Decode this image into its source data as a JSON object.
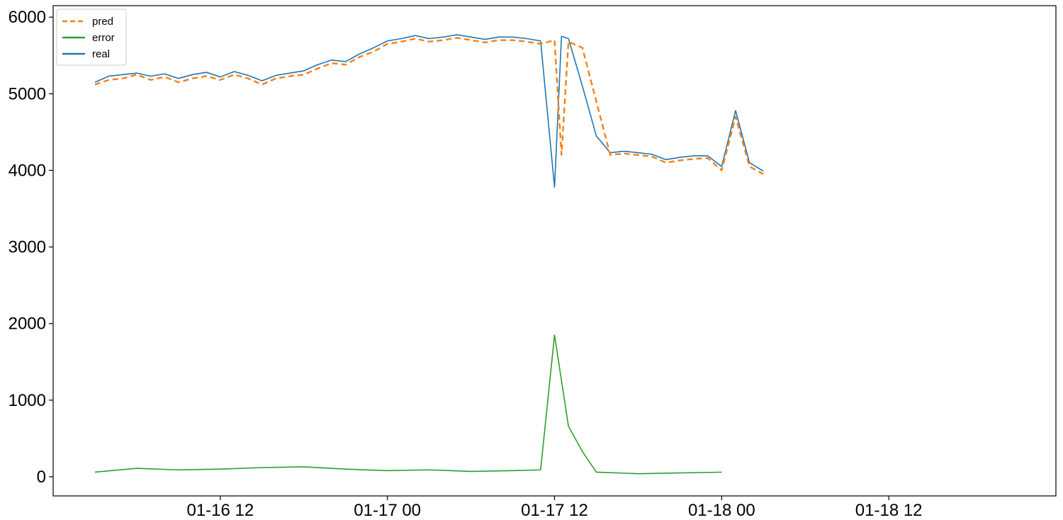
{
  "chart_data": {
    "type": "line",
    "title": "",
    "xlabel": "",
    "ylabel": "",
    "x_unit": "time (MM-DD HH)",
    "xlim": [
      "01-16 00:00",
      "01-19 00:00"
    ],
    "ylim": [
      -250,
      6150
    ],
    "grid": false,
    "legend_placement": "top-left",
    "x_ticks": [
      "01-16 12",
      "01-17 00",
      "01-17 12",
      "01-18 00",
      "01-18 12"
    ],
    "y_ticks": [
      0,
      1000,
      2000,
      3000,
      4000,
      5000,
      6000
    ],
    "series": [
      {
        "name": "pred",
        "color": "#ff7f0e",
        "style": "dashed",
        "points": [
          [
            "01-16 03:00",
            5120
          ],
          [
            "01-16 04:00",
            5180
          ],
          [
            "01-16 05:00",
            5200
          ],
          [
            "01-16 06:00",
            5250
          ],
          [
            "01-16 07:00",
            5180
          ],
          [
            "01-16 08:00",
            5220
          ],
          [
            "01-16 09:00",
            5150
          ],
          [
            "01-16 10:00",
            5200
          ],
          [
            "01-16 11:00",
            5230
          ],
          [
            "01-16 12:00",
            5180
          ],
          [
            "01-16 13:00",
            5250
          ],
          [
            "01-16 14:00",
            5200
          ],
          [
            "01-16 15:00",
            5120
          ],
          [
            "01-16 16:00",
            5200
          ],
          [
            "01-16 17:00",
            5230
          ],
          [
            "01-16 18:00",
            5250
          ],
          [
            "01-16 19:00",
            5330
          ],
          [
            "01-16 20:00",
            5400
          ],
          [
            "01-16 21:00",
            5380
          ],
          [
            "01-16 22:00",
            5480
          ],
          [
            "01-16 23:00",
            5550
          ],
          [
            "01-17 00:00",
            5650
          ],
          [
            "01-17 01:00",
            5680
          ],
          [
            "01-17 02:00",
            5720
          ],
          [
            "01-17 03:00",
            5680
          ],
          [
            "01-17 04:00",
            5700
          ],
          [
            "01-17 05:00",
            5730
          ],
          [
            "01-17 06:00",
            5700
          ],
          [
            "01-17 07:00",
            5670
          ],
          [
            "01-17 08:00",
            5700
          ],
          [
            "01-17 09:00",
            5700
          ],
          [
            "01-17 10:00",
            5680
          ],
          [
            "01-17 11:00",
            5650
          ],
          [
            "01-17 12:00",
            5700
          ],
          [
            "01-17 12:30",
            4200
          ],
          [
            "01-17 13:00",
            5680
          ],
          [
            "01-17 14:00",
            5600
          ],
          [
            "01-17 15:00",
            4900
          ],
          [
            "01-17 16:00",
            4200
          ],
          [
            "01-17 17:00",
            4220
          ],
          [
            "01-17 18:00",
            4200
          ],
          [
            "01-17 19:00",
            4180
          ],
          [
            "01-17 20:00",
            4100
          ],
          [
            "01-17 21:00",
            4130
          ],
          [
            "01-17 22:00",
            4150
          ],
          [
            "01-17 23:00",
            4160
          ],
          [
            "01-18 00:00",
            4000
          ],
          [
            "01-18 01:00",
            4700
          ],
          [
            "01-18 02:00",
            4050
          ],
          [
            "01-18 03:00",
            3950
          ]
        ]
      },
      {
        "name": "error",
        "color": "#2ca02c",
        "style": "solid",
        "points": [
          [
            "01-16 03:00",
            60
          ],
          [
            "01-16 06:00",
            110
          ],
          [
            "01-16 09:00",
            90
          ],
          [
            "01-16 12:00",
            100
          ],
          [
            "01-16 15:00",
            120
          ],
          [
            "01-16 18:00",
            130
          ],
          [
            "01-16 21:00",
            100
          ],
          [
            "01-17 00:00",
            80
          ],
          [
            "01-17 03:00",
            90
          ],
          [
            "01-17 06:00",
            70
          ],
          [
            "01-17 09:00",
            80
          ],
          [
            "01-17 11:00",
            90
          ],
          [
            "01-17 12:00",
            1850
          ],
          [
            "01-17 13:00",
            660
          ],
          [
            "01-17 14:00",
            330
          ],
          [
            "01-17 15:00",
            60
          ],
          [
            "01-17 18:00",
            40
          ],
          [
            "01-17 21:00",
            50
          ],
          [
            "01-18 00:00",
            60
          ]
        ]
      },
      {
        "name": "real",
        "color": "#1f77b4",
        "style": "solid",
        "points": [
          [
            "01-16 03:00",
            5150
          ],
          [
            "01-16 04:00",
            5230
          ],
          [
            "01-16 05:00",
            5250
          ],
          [
            "01-16 06:00",
            5270
          ],
          [
            "01-16 07:00",
            5230
          ],
          [
            "01-16 08:00",
            5260
          ],
          [
            "01-16 09:00",
            5200
          ],
          [
            "01-16 10:00",
            5250
          ],
          [
            "01-16 11:00",
            5280
          ],
          [
            "01-16 12:00",
            5220
          ],
          [
            "01-16 13:00",
            5290
          ],
          [
            "01-16 14:00",
            5240
          ],
          [
            "01-16 15:00",
            5170
          ],
          [
            "01-16 16:00",
            5240
          ],
          [
            "01-16 17:00",
            5270
          ],
          [
            "01-16 18:00",
            5300
          ],
          [
            "01-16 19:00",
            5380
          ],
          [
            "01-16 20:00",
            5440
          ],
          [
            "01-16 21:00",
            5420
          ],
          [
            "01-16 22:00",
            5520
          ],
          [
            "01-16 23:00",
            5600
          ],
          [
            "01-17 00:00",
            5690
          ],
          [
            "01-17 01:00",
            5720
          ],
          [
            "01-17 02:00",
            5760
          ],
          [
            "01-17 03:00",
            5720
          ],
          [
            "01-17 04:00",
            5740
          ],
          [
            "01-17 05:00",
            5770
          ],
          [
            "01-17 06:00",
            5740
          ],
          [
            "01-17 07:00",
            5710
          ],
          [
            "01-17 08:00",
            5740
          ],
          [
            "01-17 09:00",
            5740
          ],
          [
            "01-17 10:00",
            5720
          ],
          [
            "01-17 11:00",
            5690
          ],
          [
            "01-17 12:00",
            3780
          ],
          [
            "01-17 12:30",
            5750
          ],
          [
            "01-17 13:00",
            5720
          ],
          [
            "01-17 14:00",
            5100
          ],
          [
            "01-17 15:00",
            4450
          ],
          [
            "01-17 16:00",
            4230
          ],
          [
            "01-17 17:00",
            4250
          ],
          [
            "01-17 18:00",
            4230
          ],
          [
            "01-17 19:00",
            4210
          ],
          [
            "01-17 20:00",
            4140
          ],
          [
            "01-17 21:00",
            4170
          ],
          [
            "01-17 22:00",
            4190
          ],
          [
            "01-17 23:00",
            4190
          ],
          [
            "01-18 00:00",
            4050
          ],
          [
            "01-18 01:00",
            4780
          ],
          [
            "01-18 02:00",
            4100
          ],
          [
            "01-18 03:00",
            3990
          ]
        ]
      }
    ]
  }
}
